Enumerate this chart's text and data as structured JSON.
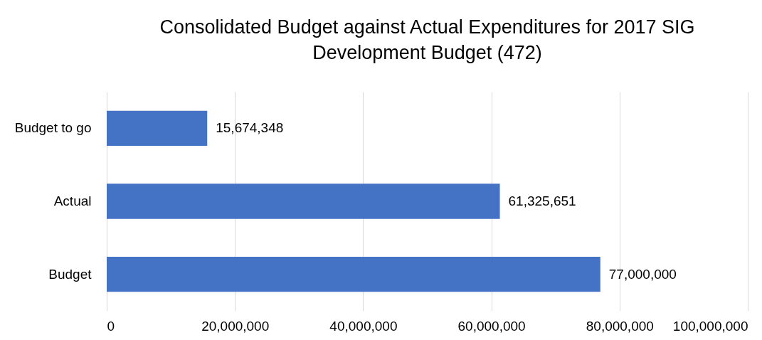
{
  "chart_data": {
    "type": "bar",
    "orientation": "horizontal",
    "title": "Consolidated Budget against Actual Expenditures for 2017 SIG\nDevelopment Budget (472)",
    "categories": [
      "Budget to go",
      "Actual",
      "Budget"
    ],
    "values": [
      15674348,
      61325651,
      77000000
    ],
    "value_labels": [
      "15,674,348",
      "61,325,651",
      "77,000,000"
    ],
    "color": "#4472c4",
    "xlim": [
      0,
      100000000
    ],
    "xticks": [
      0,
      {
        "value": 20000000,
        "label": "20,000,000"
      },
      {
        "value": 40000000,
        "label": "40,000,000"
      },
      {
        "value": 60000000,
        "label": "60,000,000"
      },
      {
        "value": 80000000,
        "label": "80,000,000"
      },
      {
        "value": 100000000,
        "label": "100,000,000"
      }
    ],
    "grid": "x"
  }
}
